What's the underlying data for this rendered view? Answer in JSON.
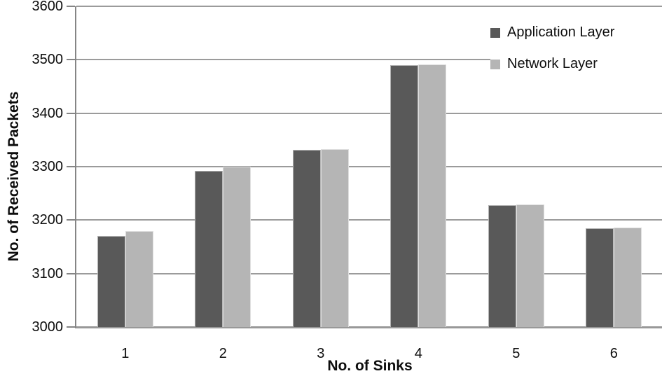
{
  "chart_data": {
    "type": "bar",
    "title": "",
    "xlabel": "No. of Sinks",
    "ylabel": "No. of Received Packets",
    "categories": [
      "1",
      "2",
      "3",
      "4",
      "5",
      "6"
    ],
    "series": [
      {
        "name": "Application Layer",
        "color": "#595959",
        "values": [
          3170,
          3292,
          3331,
          3490,
          3228,
          3185
        ]
      },
      {
        "name": "Network Layer",
        "color": "#b5b5b5",
        "values": [
          3180,
          3300,
          3333,
          3491,
          3229,
          3186
        ]
      }
    ],
    "ylim": [
      3000,
      3600
    ],
    "yticks": [
      3000,
      3100,
      3200,
      3300,
      3400,
      3500,
      3600
    ],
    "grid": "horizontal",
    "legend_position": "top-right"
  },
  "colors": {
    "gridline": "#9b9b9b",
    "axis_line": "#858585",
    "text": "#0d0d0d",
    "background": "#ffffff"
  }
}
